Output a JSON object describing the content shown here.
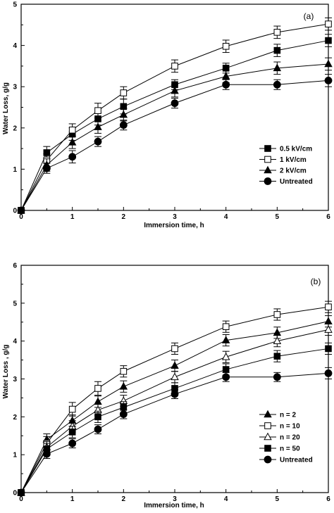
{
  "chart_data": [
    {
      "type": "line",
      "panel_label": "(a)",
      "xlabel": "Immersion time, h",
      "ylabel": "Water Loss, g/g",
      "xlim": [
        0,
        6
      ],
      "ylim": [
        0,
        5
      ],
      "xticks": [
        0,
        1,
        2,
        3,
        4,
        5,
        6
      ],
      "yticks": [
        0,
        1,
        2,
        3,
        4,
        5
      ],
      "x": [
        0,
        0.5,
        1,
        1.5,
        2,
        3,
        4,
        5,
        6
      ],
      "grid": false,
      "legend_position": "lower-right",
      "series": [
        {
          "name": "0.5 kV/cm",
          "marker": "square-filled",
          "values": [
            0,
            1.4,
            1.85,
            2.22,
            2.52,
            3.05,
            3.45,
            3.88,
            4.12
          ],
          "errors": [
            0,
            0.15,
            0.15,
            0.15,
            0.18,
            0.12,
            0.12,
            0.15,
            0.15
          ]
        },
        {
          "name": "1 kV/cm",
          "marker": "square-open",
          "values": [
            0,
            1.22,
            1.95,
            2.42,
            2.85,
            3.5,
            3.98,
            4.32,
            4.52
          ],
          "errors": [
            0,
            0.15,
            0.15,
            0.18,
            0.15,
            0.15,
            0.15,
            0.15,
            0.15
          ]
        },
        {
          "name": "2 kV/cm",
          "marker": "triangle-filled",
          "values": [
            0,
            1.1,
            1.65,
            2.02,
            2.32,
            2.9,
            3.25,
            3.45,
            3.55
          ],
          "errors": [
            0,
            0.15,
            0.15,
            0.15,
            0.15,
            0.15,
            0.15,
            0.15,
            0.15
          ]
        },
        {
          "name": "Untreated",
          "marker": "circle-filled",
          "values": [
            0,
            1.02,
            1.3,
            1.67,
            2.07,
            2.6,
            3.05,
            3.05,
            3.15
          ],
          "errors": [
            0,
            0.12,
            0.15,
            0.12,
            0.12,
            0.12,
            0.12,
            0.12,
            0.15
          ]
        }
      ]
    },
    {
      "type": "line",
      "panel_label": "(b)",
      "xlabel": "Immersion time, h",
      "ylabel": "Water Loss , g/g",
      "xlim": [
        0,
        6
      ],
      "ylim": [
        0,
        6
      ],
      "xticks": [
        0,
        1,
        2,
        3,
        4,
        5,
        6
      ],
      "yticks": [
        0,
        1,
        2,
        3,
        4,
        5,
        6
      ],
      "x": [
        0,
        0.5,
        1,
        1.5,
        2,
        3,
        4,
        5,
        6
      ],
      "grid": false,
      "legend_position": "lower-right",
      "series": [
        {
          "name": "n = 2",
          "marker": "triangle-filled",
          "values": [
            0,
            1.4,
            1.9,
            2.4,
            2.8,
            3.35,
            4.02,
            4.22,
            4.52
          ],
          "errors": [
            0,
            0.15,
            0.15,
            0.15,
            0.15,
            0.15,
            0.15,
            0.15,
            0.15
          ]
        },
        {
          "name": "n = 10",
          "marker": "square-open",
          "values": [
            0,
            1.3,
            2.2,
            2.75,
            3.2,
            3.8,
            4.38,
            4.7,
            4.9
          ],
          "errors": [
            0,
            0.18,
            0.18,
            0.18,
            0.15,
            0.15,
            0.15,
            0.15,
            0.15
          ]
        },
        {
          "name": "n = 20",
          "marker": "triangle-open",
          "values": [
            0,
            1.2,
            1.75,
            2.18,
            2.42,
            3.05,
            3.58,
            4.0,
            4.3
          ],
          "errors": [
            0,
            0.15,
            0.15,
            0.15,
            0.15,
            0.15,
            0.15,
            0.15,
            0.15
          ]
        },
        {
          "name": "n = 50",
          "marker": "square-filled",
          "values": [
            0,
            1.15,
            1.6,
            2.0,
            2.25,
            2.75,
            3.25,
            3.6,
            3.8
          ],
          "errors": [
            0,
            0.15,
            0.15,
            0.15,
            0.15,
            0.15,
            0.15,
            0.15,
            0.15
          ]
        },
        {
          "name": "Untreated",
          "marker": "circle-filled",
          "values": [
            0,
            1.02,
            1.3,
            1.67,
            2.07,
            2.6,
            3.05,
            3.05,
            3.15
          ],
          "errors": [
            0,
            0.12,
            0.12,
            0.12,
            0.12,
            0.12,
            0.12,
            0.12,
            0.15
          ]
        }
      ]
    }
  ]
}
